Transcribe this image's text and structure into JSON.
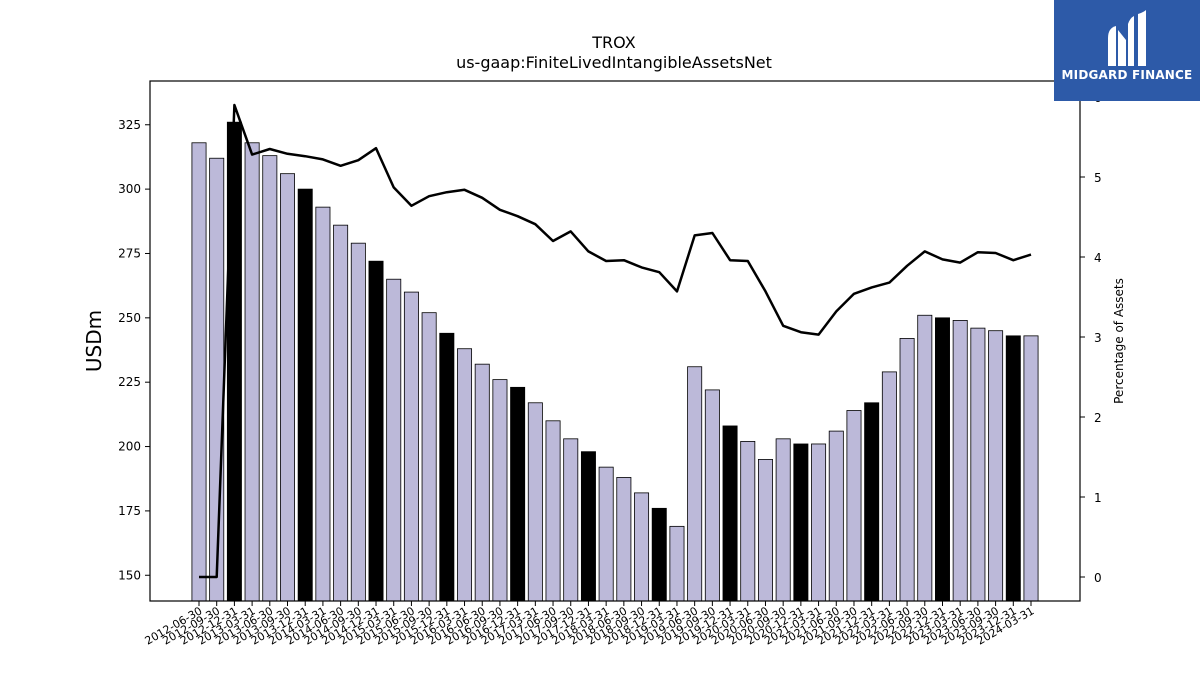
{
  "chart_data": {
    "type": "bar",
    "title": "TROX",
    "subtitle": "us-gaap:FiniteLivedIntangibleAssetsNet",
    "ylabel": "USDm",
    "y2label": "Percentage of Assets",
    "ylim": [
      140,
      342
    ],
    "y2lim": [
      -0.3,
      6.2
    ],
    "yticks": [
      150,
      175,
      200,
      225,
      250,
      275,
      300,
      325
    ],
    "y2ticks": [
      0,
      1,
      2,
      3,
      4,
      5,
      6
    ],
    "categories": [
      "2012-06-30",
      "2012-09-30",
      "2012-12-31",
      "2013-03-31",
      "2013-06-30",
      "2013-09-30",
      "2013-12-31",
      "2014-03-31",
      "2014-06-30",
      "2014-09-30",
      "2014-12-31",
      "2015-03-31",
      "2015-06-30",
      "2015-09-30",
      "2015-12-31",
      "2016-03-31",
      "2016-06-30",
      "2016-09-30",
      "2016-12-31",
      "2017-03-31",
      "2017-06-30",
      "2017-09-30",
      "2017-12-31",
      "2018-03-31",
      "2018-06-30",
      "2018-09-30",
      "2018-12-31",
      "2019-03-31",
      "2019-06-30",
      "2019-09-30",
      "2019-12-31",
      "2020-03-31",
      "2020-06-30",
      "2020-09-30",
      "2020-12-31",
      "2021-03-31",
      "2021-06-30",
      "2021-09-30",
      "2021-12-31",
      "2022-03-31",
      "2022-06-30",
      "2022-09-30",
      "2022-12-31",
      "2023-03-31",
      "2023-06-30",
      "2023-09-30",
      "2023-12-31",
      "2024-03-31"
    ],
    "series": [
      {
        "type": "bar",
        "values": [
          318,
          312,
          326,
          318,
          313,
          306,
          300,
          293,
          286,
          279,
          272,
          265,
          260,
          252,
          244,
          238,
          232,
          226,
          223,
          217,
          210,
          203,
          198,
          192,
          188,
          182,
          176,
          169,
          231,
          222,
          208,
          202,
          195,
          203,
          201,
          201,
          206,
          214,
          217,
          229,
          242,
          251,
          250,
          249,
          246,
          245,
          243,
          243
        ],
        "highlight_color": "#000000",
        "color": "#bcb9d9"
      },
      {
        "type": "line",
        "axis": "right",
        "values": [
          0,
          0,
          5.9,
          5.28,
          5.35,
          5.29,
          5.26,
          5.22,
          5.14,
          5.21,
          5.36,
          4.87,
          4.64,
          4.76,
          4.81,
          4.84,
          4.74,
          4.59,
          4.51,
          4.41,
          4.2,
          4.32,
          4.07,
          3.95,
          3.96,
          3.87,
          3.81,
          3.57,
          4.27,
          4.3,
          3.96,
          3.95,
          3.57,
          3.14,
          3.06,
          3.03,
          3.32,
          3.54,
          3.62,
          3.68,
          3.89,
          4.07,
          3.97,
          3.93,
          4.06,
          4.05,
          3.96,
          4.03
        ],
        "color": "#000000"
      }
    ],
    "highlighted_categories": [
      "2012-12-31",
      "2013-12-31",
      "2014-12-31",
      "2015-12-31",
      "2016-12-31",
      "2017-12-31",
      "2018-12-31",
      "2019-12-31",
      "2020-12-31",
      "2021-12-31",
      "2022-12-31",
      "2023-12-31"
    ]
  },
  "logo": {
    "text": "MIDGARD FINANCE",
    "bg_color": "#2d5aa8"
  }
}
